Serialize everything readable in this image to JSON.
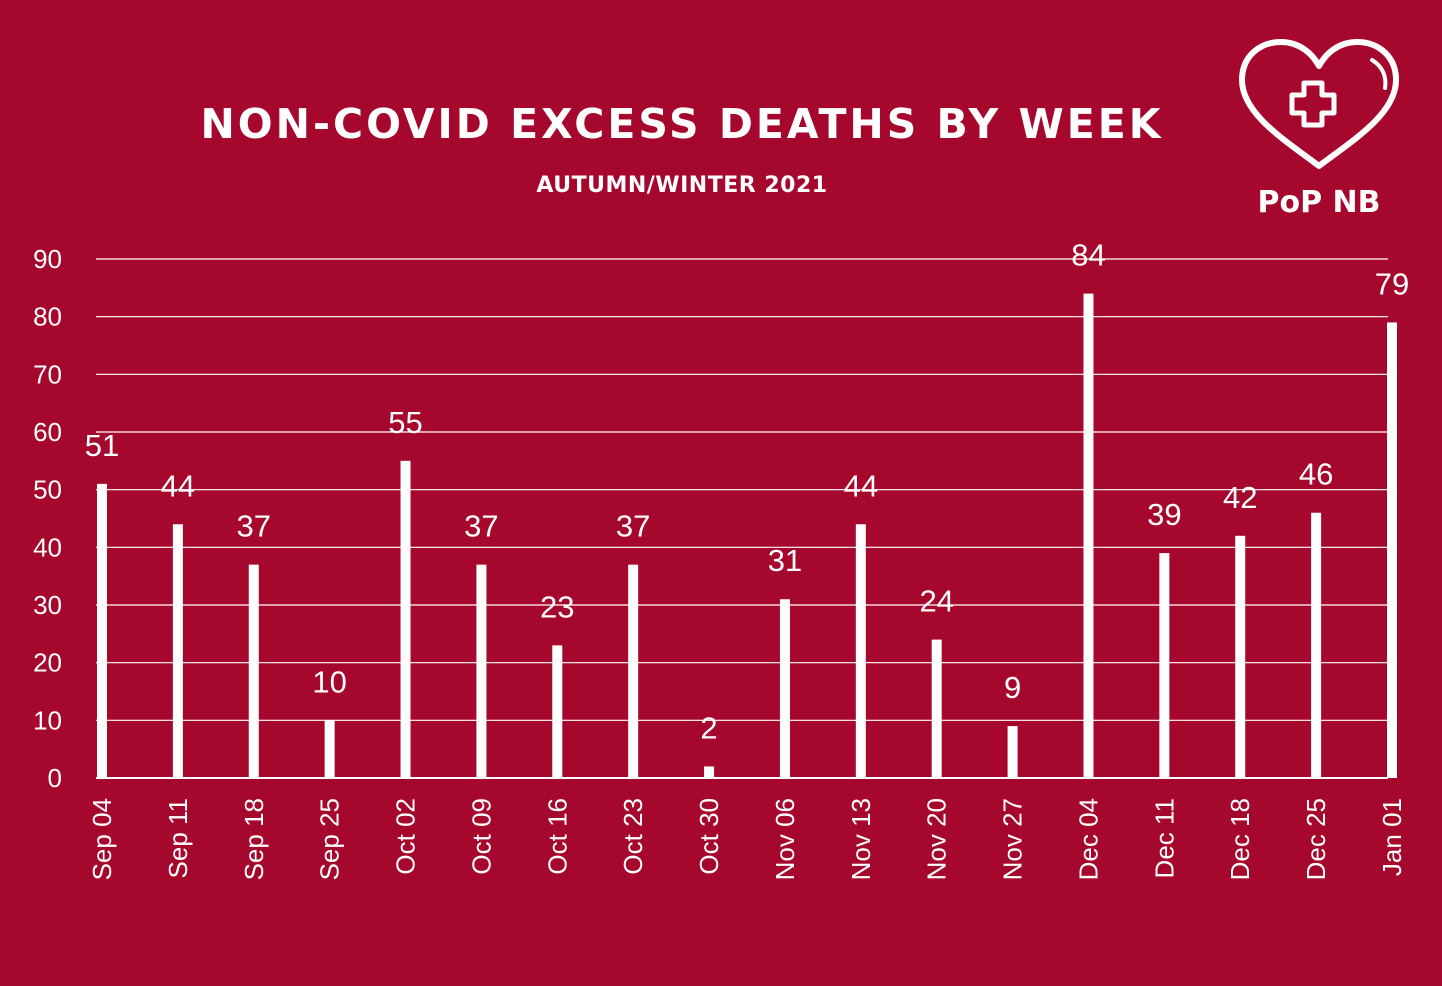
{
  "header": {
    "title": "NON-COVID EXCESS DEATHS BY WEEK",
    "subtitle": "AUTUMN/WINTER 2021"
  },
  "logo": {
    "icon": "heart-cross-icon",
    "text": "PoP NB"
  },
  "colors": {
    "background": "#a6072d",
    "foreground": "#ffffff"
  },
  "chart_data": {
    "type": "bar",
    "title": "NON-COVID EXCESS DEATHS BY WEEK",
    "subtitle": "AUTUMN/WINTER 2021",
    "xlabel": "",
    "ylabel": "",
    "categories": [
      "Sep 04",
      "Sep 11",
      "Sep 18",
      "Sep 25",
      "Oct 02",
      "Oct 09",
      "Oct 16",
      "Oct 23",
      "Oct 30",
      "Nov 06",
      "Nov 13",
      "Nov 20",
      "Nov 27",
      "Dec 04",
      "Dec 11",
      "Dec 18",
      "Dec 25",
      "Jan 01"
    ],
    "values": [
      51,
      44,
      37,
      10,
      55,
      37,
      23,
      37,
      2,
      31,
      44,
      24,
      9,
      84,
      39,
      42,
      46,
      79
    ],
    "ylim": [
      0,
      90
    ],
    "yticks": [
      0,
      10,
      20,
      30,
      40,
      50,
      60,
      70,
      80,
      90
    ],
    "grid": true,
    "data_labels": true,
    "legend": "none"
  }
}
